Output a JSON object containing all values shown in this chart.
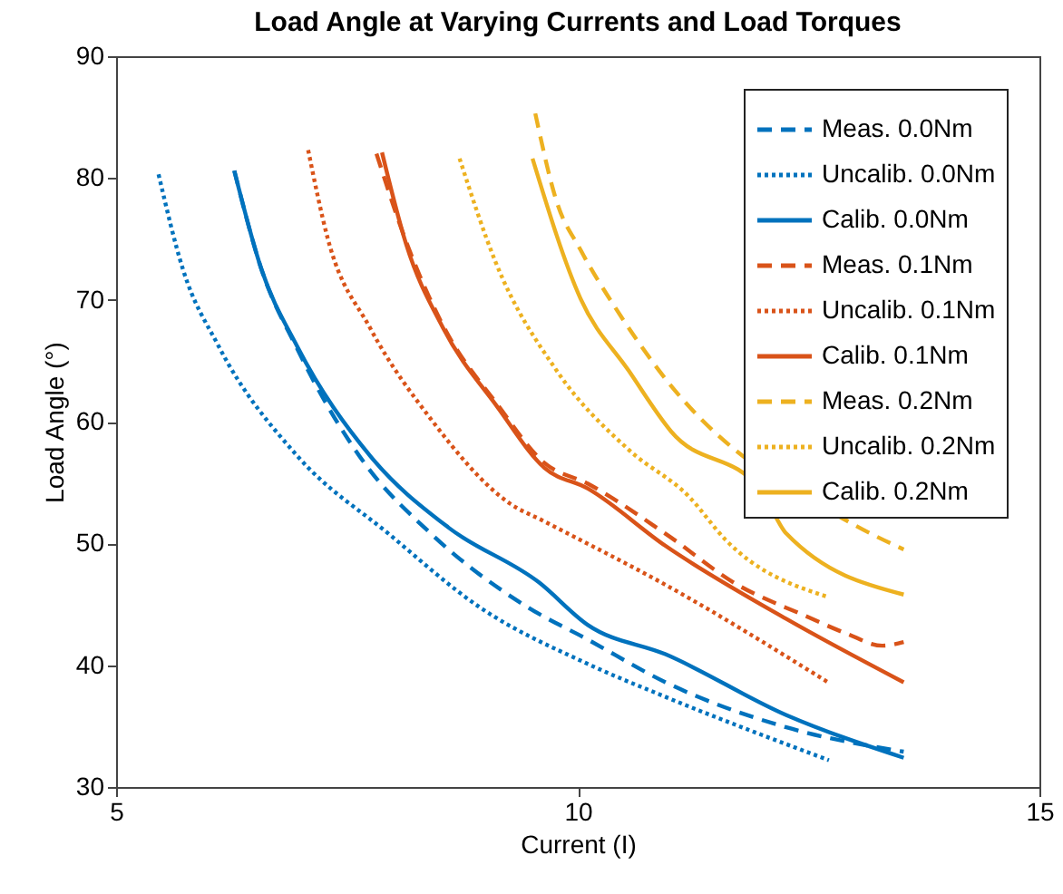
{
  "chart_data": {
    "type": "line",
    "title": "Load Angle at Varying Currents and Load Torques",
    "xlabel": "Current (I)",
    "ylabel": "Load Angle (°)",
    "xlim": [
      5,
      15
    ],
    "xticks": [
      5,
      10,
      15
    ],
    "ylim": [
      30,
      90
    ],
    "yticks": [
      30,
      40,
      50,
      60,
      70,
      80,
      90
    ],
    "grid": false,
    "legend": "top right",
    "series": [
      {
        "name": "Meas. 0.0Nm",
        "color": "#0072bd",
        "line_style": "dashed",
        "x": [
          6.28,
          6.57,
          6.96,
          7.68,
          8.41,
          9.45,
          10.11,
          10.95,
          12.26,
          13.53
        ],
        "values": [
          80.6,
          72.6,
          66.0,
          56.7,
          50.8,
          44.8,
          42.1,
          38.6,
          34.9,
          32.9
        ]
      },
      {
        "name": "Uncalib. 0.0Nm",
        "color": "#0072bd",
        "line_style": "dotted",
        "x": [
          5.46,
          5.72,
          6.11,
          6.96,
          7.95,
          8.93,
          10.11,
          10.95,
          12.72
        ],
        "values": [
          80.3,
          72.6,
          66.2,
          57.2,
          50.8,
          44.8,
          40.1,
          37.4,
          32.2
        ]
      },
      {
        "name": "Calib. 0.0Nm",
        "color": "#0072bd",
        "line_style": "solid",
        "x": [
          6.28,
          6.57,
          6.96,
          7.75,
          8.6,
          9.58,
          10.11,
          10.95,
          12.26,
          13.53
        ],
        "values": [
          80.6,
          72.6,
          66.2,
          57.2,
          51.3,
          46.8,
          43.3,
          40.9,
          35.9,
          32.4
        ]
      },
      {
        "name": "Meas. 0.1Nm",
        "color": "#d95319",
        "line_style": "dashed",
        "x": [
          7.82,
          8.14,
          8.54,
          9.13,
          9.64,
          10.11,
          10.95,
          11.73,
          12.45,
          12.91,
          13.3,
          13.53
        ],
        "values": [
          82.0,
          74.8,
          67.9,
          61.4,
          56.6,
          54.9,
          50.8,
          46.6,
          44.1,
          42.6,
          41.6,
          41.9
        ]
      },
      {
        "name": "Uncalib. 0.1Nm",
        "color": "#d95319",
        "line_style": "dotted",
        "x": [
          7.08,
          7.29,
          7.75,
          8.41,
          9.26,
          9.64,
          10.95,
          12.71
        ],
        "values": [
          82.3,
          75.1,
          67.7,
          60.2,
          53.3,
          51.8,
          46.6,
          38.6
        ]
      },
      {
        "name": "Calib. 0.1Nm",
        "color": "#d95319",
        "line_style": "solid",
        "x": [
          7.88,
          8.14,
          8.54,
          9.13,
          9.64,
          10.11,
          10.95,
          12.26,
          13.53
        ],
        "values": [
          82.1,
          74.6,
          67.7,
          61.2,
          56.2,
          54.5,
          49.8,
          43.8,
          38.6
        ]
      },
      {
        "name": "Meas. 0.2Nm",
        "color": "#edb120",
        "line_style": "dashed",
        "x": [
          9.54,
          9.77,
          10.03,
          10.42,
          10.88,
          13.0,
          13.53
        ],
        "values": [
          85.3,
          78.1,
          74.1,
          69.2,
          64.2,
          51.5,
          49.5
        ]
      },
      {
        "name": "Uncalib. 0.2Nm",
        "color": "#edb120",
        "line_style": "dotted",
        "x": [
          8.72,
          9.11,
          9.77,
          10.55,
          11.21,
          11.6,
          12.71
        ],
        "values": [
          81.6,
          73.1,
          64.2,
          57.7,
          53.8,
          50.3,
          45.6
        ]
      },
      {
        "name": "Calib. 0.2Nm",
        "color": "#edb120",
        "line_style": "solid",
        "x": [
          9.51,
          10.03,
          10.55,
          11.01,
          11.99,
          12.26,
          13.53
        ],
        "values": [
          81.6,
          70.1,
          64.2,
          59.2,
          54.3,
          50.8,
          45.8
        ]
      }
    ]
  }
}
